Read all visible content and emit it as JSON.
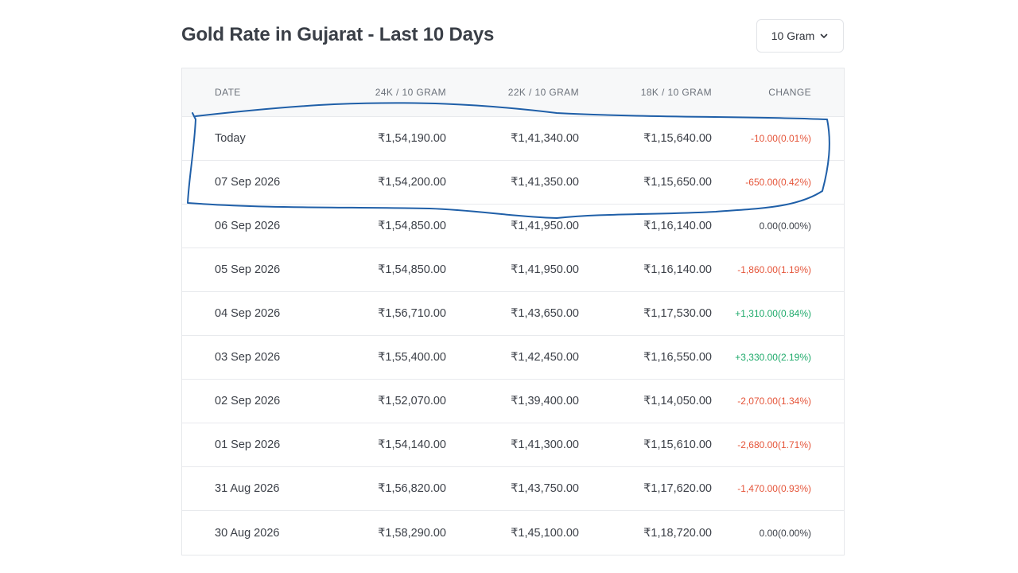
{
  "title": "Gold Rate in Gujarat - Last 10 Days",
  "unit_select": {
    "value": "10 Gram"
  },
  "table": {
    "headers": {
      "date": "DATE",
      "k24": "24K / 10 GRAM",
      "k22": "22K / 10 GRAM",
      "k18": "18K / 10 GRAM",
      "change": "CHANGE"
    },
    "rows": [
      {
        "date": "Today",
        "k24": "₹1,54,190.00",
        "k22": "₹1,41,340.00",
        "k18": "₹1,15,640.00",
        "change": "-10.00(0.01%)",
        "trend": "neg"
      },
      {
        "date": "07 Sep 2026",
        "k24": "₹1,54,200.00",
        "k22": "₹1,41,350.00",
        "k18": "₹1,15,650.00",
        "change": "-650.00(0.42%)",
        "trend": "neg"
      },
      {
        "date": "06 Sep 2026",
        "k24": "₹1,54,850.00",
        "k22": "₹1,41,950.00",
        "k18": "₹1,16,140.00",
        "change": "0.00(0.00%)",
        "trend": "zero"
      },
      {
        "date": "05 Sep 2026",
        "k24": "₹1,54,850.00",
        "k22": "₹1,41,950.00",
        "k18": "₹1,16,140.00",
        "change": "-1,860.00(1.19%)",
        "trend": "neg"
      },
      {
        "date": "04 Sep 2026",
        "k24": "₹1,56,710.00",
        "k22": "₹1,43,650.00",
        "k18": "₹1,17,530.00",
        "change": "+1,310.00(0.84%)",
        "trend": "pos"
      },
      {
        "date": "03 Sep 2026",
        "k24": "₹1,55,400.00",
        "k22": "₹1,42,450.00",
        "k18": "₹1,16,550.00",
        "change": "+3,330.00(2.19%)",
        "trend": "pos"
      },
      {
        "date": "02 Sep 2026",
        "k24": "₹1,52,070.00",
        "k22": "₹1,39,400.00",
        "k18": "₹1,14,050.00",
        "change": "-2,070.00(1.34%)",
        "trend": "neg"
      },
      {
        "date": "01 Sep 2026",
        "k24": "₹1,54,140.00",
        "k22": "₹1,41,300.00",
        "k18": "₹1,15,610.00",
        "change": "-2,680.00(1.71%)",
        "trend": "neg"
      },
      {
        "date": "31 Aug 2026",
        "k24": "₹1,56,820.00",
        "k22": "₹1,43,750.00",
        "k18": "₹1,17,620.00",
        "change": "-1,470.00(0.93%)",
        "trend": "neg"
      },
      {
        "date": "30 Aug 2026",
        "k24": "₹1,58,290.00",
        "k22": "₹1,45,100.00",
        "k18": "₹1,18,720.00",
        "change": "0.00(0.00%)",
        "trend": "zero"
      }
    ]
  },
  "colors": {
    "negative": "#e5553a",
    "positive": "#1faa6b",
    "annotation": "#1f5fa8"
  },
  "icons": {
    "unit_select": "chevron-down-icon"
  }
}
